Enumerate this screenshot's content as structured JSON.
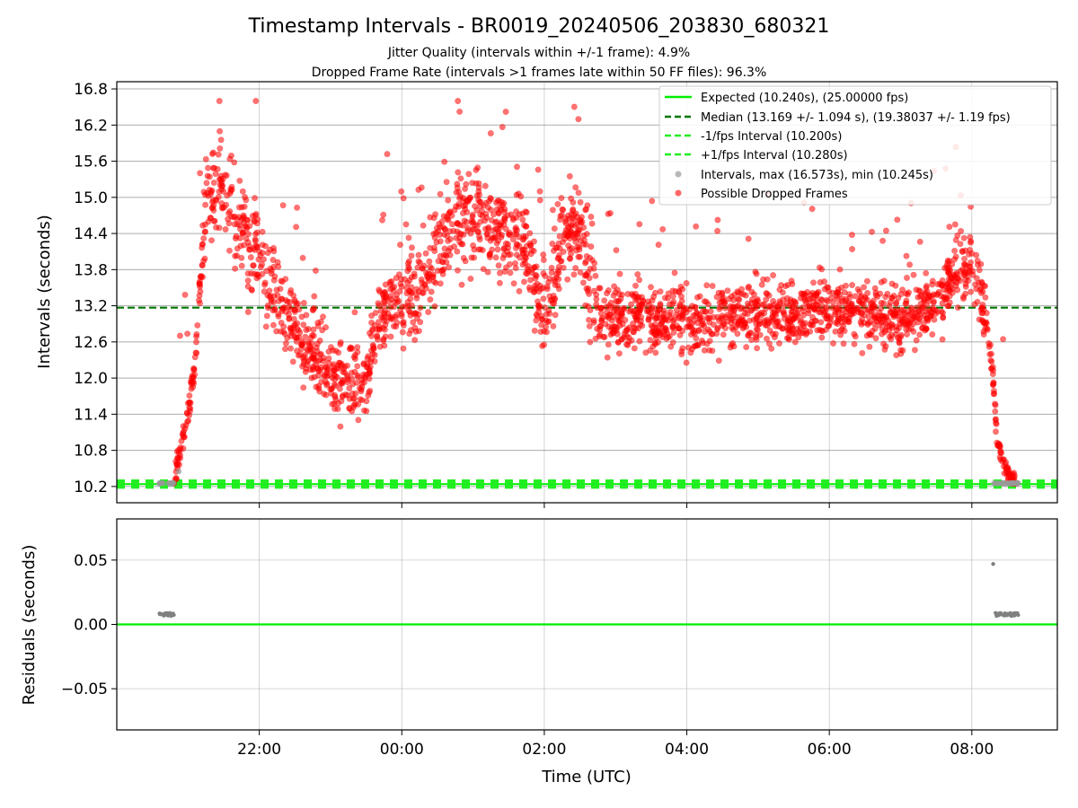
{
  "chart_data": [
    {
      "type": "scatter",
      "panel": "top",
      "title": "Timestamp Intervals - BR0019_20240506_203830_680321",
      "subtitle_lines": [
        "Jitter Quality (intervals within +/-1 frame): 4.9%",
        "Dropped Frame Rate (intervals >1 frames late within 50 FF files): 96.3%"
      ],
      "ylabel": "Intervals (seconds)",
      "ylim": [
        9.93,
        16.92
      ],
      "yticks": [
        "10.2",
        "10.8",
        "11.4",
        "12.0",
        "12.6",
        "13.2",
        "13.8",
        "14.4",
        "15.0",
        "15.6",
        "16.2",
        "16.8"
      ],
      "grid": true,
      "legend_position": "upper-right",
      "reference_lines": [
        {
          "name": "Expected (10.240s), (25.00000 fps)",
          "value": 10.24,
          "color": "#00ee00",
          "style": "solid"
        },
        {
          "name": "Median (13.169 +/- 1.094 s), (19.38037 +/- 1.19 fps)",
          "value": 13.169,
          "color": "#007700",
          "style": "dashed"
        },
        {
          "name": "-1/fps Interval (10.200s)",
          "value": 10.2,
          "color": "#22ee22",
          "style": "dashed"
        },
        {
          "name": "+1/fps Interval (10.280s)",
          "value": 10.28,
          "color": "#22ee22",
          "style": "dashed"
        }
      ],
      "scatter_series": [
        {
          "name": "Intervals, max (16.573s), min (10.245s)",
          "color": "#999999"
        },
        {
          "name": "Possible Dropped Frames",
          "color": "#ff0000"
        }
      ],
      "trend_x_hours": [
        20.8,
        20.9,
        21.0,
        21.1,
        21.25,
        21.5,
        21.75,
        22.0,
        22.25,
        22.5,
        22.75,
        23.0,
        23.25,
        23.5,
        23.62,
        23.75,
        24.0,
        24.25,
        24.5,
        24.75,
        25.0,
        25.25,
        25.5,
        25.75,
        25.95,
        26.1,
        26.3,
        26.5,
        26.65,
        26.8,
        27.0,
        27.5,
        28.0,
        28.5,
        29.0,
        29.5,
        30.0,
        30.5,
        31.0,
        31.5,
        31.75,
        32.0,
        32.1,
        32.2,
        32.25,
        32.3,
        32.35,
        32.45,
        32.55,
        32.62
      ],
      "trend_y_seconds": [
        10.27,
        10.9,
        11.5,
        12.2,
        15.0,
        15.2,
        14.5,
        14.0,
        13.4,
        12.9,
        12.5,
        12.1,
        11.9,
        11.9,
        12.6,
        13.1,
        13.3,
        13.5,
        14.2,
        14.6,
        14.6,
        14.5,
        14.4,
        14.3,
        13.0,
        13.5,
        14.4,
        14.4,
        13.5,
        13.0,
        13.0,
        13.0,
        12.95,
        13.0,
        13.1,
        13.05,
        13.2,
        13.1,
        13.0,
        13.2,
        13.8,
        13.9,
        13.5,
        13.0,
        12.5,
        12.0,
        11.0,
        10.6,
        10.3,
        10.25
      ]
    },
    {
      "type": "scatter",
      "panel": "bottom",
      "xlabel": "Time (UTC)",
      "ylabel": "Residuals (seconds)",
      "ylim": [
        -0.082,
        0.082
      ],
      "yticks": [
        "0.05",
        "0.00",
        "−0.05"
      ],
      "xlim_hours": [
        20.0,
        33.2
      ],
      "xticks": [
        "22:00",
        "00:00",
        "02:00",
        "04:00",
        "06:00",
        "08:00"
      ],
      "xtick_hours": [
        22,
        24,
        26,
        28,
        30,
        32
      ],
      "grid": true,
      "reference_line": {
        "value": 0.0,
        "color": "#00ee00"
      },
      "residual_points": [
        {
          "x_hours": 20.6,
          "y": 0.0085
        },
        {
          "x_hours": 20.65,
          "y": 0.0078
        },
        {
          "x_hours": 20.7,
          "y": 0.0075
        },
        {
          "x_hours": 20.75,
          "y": 0.0074
        },
        {
          "x_hours": 20.8,
          "y": 0.0073
        },
        {
          "x_hours": 32.3,
          "y": 0.047
        },
        {
          "x_hours": 32.35,
          "y": 0.0075
        },
        {
          "x_hours": 32.4,
          "y": 0.008
        },
        {
          "x_hours": 32.45,
          "y": 0.0072
        },
        {
          "x_hours": 32.5,
          "y": 0.0082
        },
        {
          "x_hours": 32.55,
          "y": 0.0075
        },
        {
          "x_hours": 32.6,
          "y": 0.0079
        },
        {
          "x_hours": 32.65,
          "y": 0.0073
        }
      ]
    }
  ]
}
